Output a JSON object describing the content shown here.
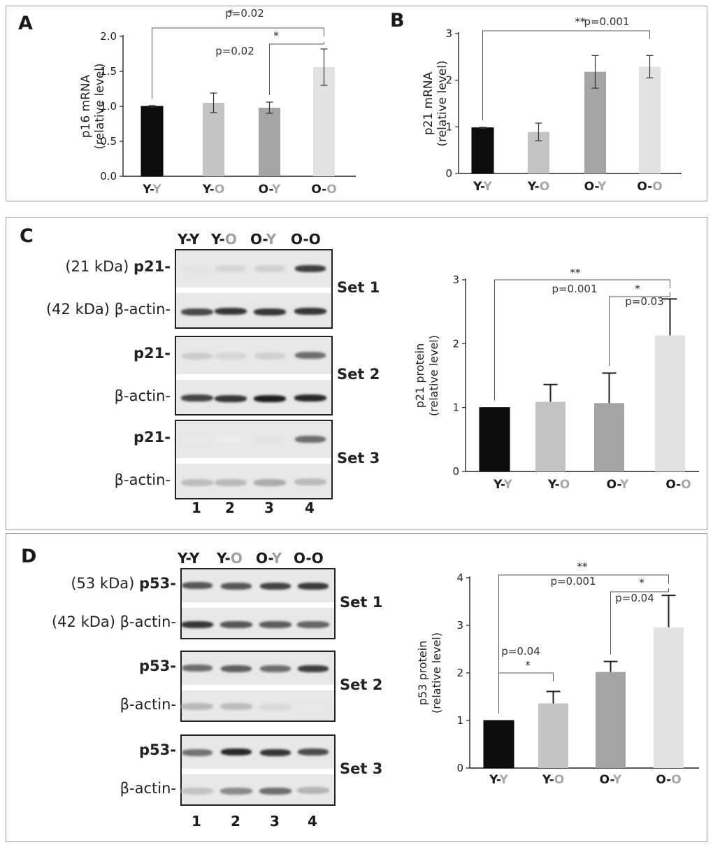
{
  "panels": {
    "A": "A",
    "B": "B",
    "C": "C",
    "D": "D"
  },
  "groups": [
    {
      "first": "Y",
      "second": "Y"
    },
    {
      "first": "Y",
      "second": "O"
    },
    {
      "first": "O",
      "second": "Y"
    },
    {
      "first": "O",
      "second": "O"
    }
  ],
  "colors": {
    "yy": "#0d0d0d",
    "yo": "#c3c3c3",
    "oy": "#a4a4a4",
    "oo": "#e2e2e2",
    "second_gray": "#a8a8a8"
  },
  "blots": {
    "headers": [
      "Y-Y",
      "Y-O",
      "O-Y",
      "O-O"
    ],
    "lane_numbers": [
      "1",
      "2",
      "3",
      "4"
    ],
    "C": {
      "rows": [
        {
          "set": "Set 1",
          "target_kda": "(21 kDa)",
          "target": "p21-",
          "actin_kda": "(42 kDa)",
          "actin": "β-actin-"
        },
        {
          "set": "Set 2",
          "target_kda": "",
          "target": "p21-",
          "actin_kda": "",
          "actin": "β-actin-"
        },
        {
          "set": "Set 3",
          "target_kda": "",
          "target": "p21-",
          "actin_kda": "",
          "actin": "β-actin-"
        }
      ]
    },
    "D": {
      "rows": [
        {
          "set": "Set 1",
          "target_kda": "(53 kDa)",
          "target": "p53-",
          "actin_kda": "(42 kDa)",
          "actin": "β-actin-"
        },
        {
          "set": "Set 2",
          "target_kda": "",
          "target": "p53-",
          "actin_kda": "",
          "actin": "β-actin-"
        },
        {
          "set": "Set 3",
          "target_kda": "",
          "target": "p53-",
          "actin_kda": "",
          "actin": "β-actin-"
        }
      ]
    }
  },
  "chart_data": [
    {
      "id": "A",
      "type": "bar",
      "ylabel": "p16 mRNA",
      "ylabel2": "(relative level)",
      "ylim": [
        0,
        2.0
      ],
      "yticks": [
        "0.0",
        "0.5",
        "1.0",
        "1.5",
        "2.0"
      ],
      "values": [
        1.0,
        1.05,
        0.98,
        1.56
      ],
      "err": [
        0.01,
        0.14,
        0.08,
        0.26
      ],
      "annotations": [
        {
          "stars": "*",
          "p": "p=0.02"
        },
        {
          "stars": "*",
          "p": "p=0.02"
        }
      ]
    },
    {
      "id": "B",
      "type": "bar",
      "ylabel": "p21 mRNA",
      "ylabel2": "(relative level)",
      "ylim": [
        0,
        3
      ],
      "yticks": [
        "0",
        "1",
        "2",
        "3"
      ],
      "values": [
        0.98,
        0.89,
        2.18,
        2.29
      ],
      "err": [
        0.01,
        0.19,
        0.35,
        0.24
      ],
      "annotations": [
        {
          "stars": "**",
          "p": "p=0.001"
        }
      ]
    },
    {
      "id": "C",
      "type": "bar",
      "ylabel": "p21 protein",
      "ylabel2": "(relative level)",
      "ylim": [
        0,
        3
      ],
      "yticks": [
        "0",
        "1",
        "2",
        "3"
      ],
      "values": [
        1.0,
        1.09,
        1.07,
        2.13
      ],
      "err": [
        0.0,
        0.27,
        0.47,
        0.57
      ],
      "annotations": [
        {
          "stars": "**",
          "p": "p=0.001"
        },
        {
          "stars": "*",
          "p": "p=0.03"
        }
      ]
    },
    {
      "id": "D",
      "type": "bar",
      "ylabel": "p53 protein",
      "ylabel2": "(relative level)",
      "ylim": [
        0,
        4
      ],
      "yticks": [
        "0",
        "1",
        "2",
        "3",
        "4"
      ],
      "values": [
        1.0,
        1.36,
        2.02,
        2.96
      ],
      "err": [
        0.0,
        0.25,
        0.22,
        0.67
      ],
      "annotations": [
        {
          "stars": "**",
          "p": "p=0.001"
        },
        {
          "stars": "*",
          "p": "p=0.04"
        },
        {
          "stars": "*",
          "p": "p=0.04"
        }
      ]
    }
  ]
}
